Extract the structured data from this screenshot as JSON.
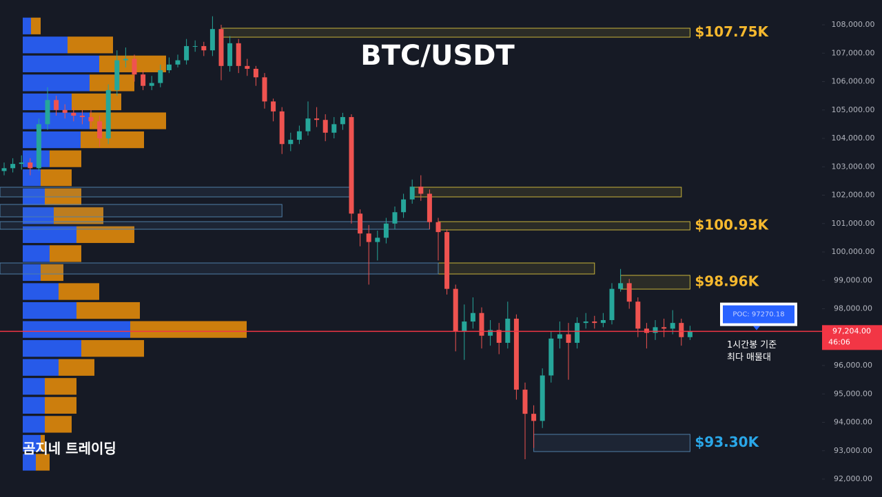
{
  "chart_data": {
    "type": "candlestick",
    "title": "BTC/USDT",
    "watermark": "곰지네 트레이딩",
    "ylim": [
      91370,
      108873
    ],
    "yticks": [
      {
        "value": 92000,
        "label": "92,000.00"
      },
      {
        "value": 93000,
        "label": "93,000.00"
      },
      {
        "value": 94000,
        "label": "94,000.00"
      },
      {
        "value": 95000,
        "label": "95,000.00"
      },
      {
        "value": 96000,
        "label": "96,000.00"
      },
      {
        "value": 97000,
        "label": "97,000.00"
      },
      {
        "value": 98000,
        "label": "98,000.00"
      },
      {
        "value": 99000,
        "label": "99,000.00"
      },
      {
        "value": 100000,
        "label": "100,000.00"
      },
      {
        "value": 101000,
        "label": "101,000.00"
      },
      {
        "value": 102000,
        "label": "102,000.00"
      },
      {
        "value": 103000,
        "label": "103,000.00"
      },
      {
        "value": 104000,
        "label": "104,000.00"
      },
      {
        "value": 105000,
        "label": "105,000.00"
      },
      {
        "value": 106000,
        "label": "106,000.00"
      },
      {
        "value": 107000,
        "label": "107,000.00"
      },
      {
        "value": 108000,
        "label": "108,000.00"
      }
    ],
    "up_color": "#26a69a",
    "down_color": "#ef5350",
    "open": [
      102850,
      102950,
      103100,
      103150,
      102950,
      104500,
      105350,
      105000,
      104900,
      104800,
      104750,
      104600,
      104000,
      105700,
      106750,
      106800,
      106250,
      105850,
      105950,
      106400,
      106600,
      106750,
      107250,
      107250,
      107100,
      107850,
      106550,
      107350,
      106550,
      106450,
      106150,
      105300,
      104950,
      103800,
      103950,
      104250,
      104700,
      104650,
      104200,
      104500,
      104750,
      101350,
      100650,
      100350,
      100500,
      101000,
      101400,
      101850,
      102300,
      102050,
      101050,
      100700,
      98700,
      97200,
      97550,
      97850,
      97050,
      97250,
      96800,
      97650,
      95150,
      94300,
      94050,
      95650,
      96950,
      97100,
      96800,
      97500,
      97550,
      97500,
      97600,
      98700,
      98900,
      98250,
      97300,
      97150,
      97350,
      97300,
      97500,
      97000
    ],
    "high": [
      103150,
      103300,
      103400,
      103300,
      104700,
      105800,
      105500,
      105200,
      105100,
      105000,
      105000,
      104800,
      105900,
      107100,
      107200,
      106950,
      106400,
      106200,
      106600,
      106850,
      106950,
      107500,
      107450,
      107400,
      108300,
      108000,
      107600,
      107500,
      106800,
      106550,
      106300,
      105400,
      105100,
      104200,
      104450,
      105300,
      105100,
      104850,
      104750,
      104900,
      104850,
      101500,
      100950,
      100750,
      101200,
      101600,
      102050,
      102550,
      102700,
      102200,
      101200,
      100800,
      98850,
      98150,
      98400,
      98050,
      97600,
      97500,
      98250,
      97800,
      95400,
      94600,
      95900,
      97200,
      97550,
      97500,
      97700,
      97850,
      97750,
      97850,
      98900,
      99400,
      99050,
      98400,
      97500,
      97600,
      97650,
      97950,
      97650,
      97400
    ],
    "low": [
      102700,
      102800,
      102900,
      102700,
      102850,
      104300,
      104800,
      104700,
      104600,
      104500,
      104400,
      103700,
      103800,
      105500,
      106500,
      106000,
      105700,
      105700,
      105800,
      106300,
      106500,
      106600,
      107050,
      106900,
      106900,
      106050,
      106350,
      106300,
      106200,
      105850,
      105050,
      104600,
      103450,
      103550,
      103800,
      104100,
      104400,
      103900,
      104000,
      104300,
      101000,
      100200,
      98850,
      99700,
      100300,
      100800,
      101200,
      101700,
      101800,
      100800,
      99700,
      98500,
      96500,
      96200,
      97300,
      96600,
      96700,
      96400,
      96600,
      94800,
      92700,
      93100,
      93800,
      95400,
      96600,
      95500,
      96600,
      97300,
      97300,
      97350,
      97450,
      98600,
      98000,
      97000,
      96600,
      96900,
      97000,
      97100,
      96700,
      96900
    ],
    "close": [
      102950,
      103100,
      103150,
      102950,
      104500,
      105350,
      105000,
      104900,
      104800,
      104750,
      104600,
      104000,
      105700,
      106750,
      106800,
      106250,
      105850,
      105950,
      106400,
      106600,
      106750,
      107250,
      107250,
      107100,
      107850,
      106550,
      107350,
      106550,
      106450,
      106150,
      105300,
      104950,
      103800,
      103950,
      104250,
      104700,
      104650,
      104200,
      104500,
      104750,
      101350,
      100650,
      100350,
      100500,
      101000,
      101400,
      101850,
      102300,
      102050,
      101050,
      100700,
      98700,
      97200,
      97550,
      97850,
      97050,
      97250,
      96800,
      97650,
      95150,
      94300,
      94050,
      95650,
      96950,
      97100,
      96800,
      97500,
      97550,
      97500,
      97600,
      98700,
      98900,
      98250,
      97300,
      97150,
      97350,
      97300,
      97500,
      97000,
      97204
    ],
    "profile": {
      "levels": [
        107958,
        107290,
        106622,
        105954,
        105286,
        104618,
        103950,
        103282,
        102614,
        101946,
        101278,
        100610,
        99942,
        99274,
        98606,
        97938,
        97270,
        96602,
        95934,
        95266,
        94598,
        93930,
        93262,
        92594
      ],
      "step": 668,
      "buy_color": "#2962ff",
      "sell_color": "#e08a0b",
      "buy": [
        12,
        65,
        111,
        97,
        71,
        97,
        84,
        39,
        26,
        32,
        45,
        78,
        39,
        26,
        52,
        78,
        156,
        85,
        52,
        32,
        32,
        32,
        26,
        19
      ],
      "sell": [
        14,
        66,
        97,
        65,
        72,
        111,
        92,
        46,
        45,
        53,
        72,
        84,
        46,
        33,
        59,
        92,
        169,
        91,
        52,
        46,
        46,
        39,
        6,
        20
      ]
    },
    "zones": [
      {
        "top": 107879,
        "bottom": 107564,
        "start": 25,
        "end": 79,
        "color": "#c9b43a",
        "label": "$107.75K",
        "label_color": "#f5b82e"
      },
      {
        "top": 102279,
        "bottom": 101939,
        "start": 47,
        "end": 78,
        "color": "#c9b43a"
      },
      {
        "top": 101067,
        "bottom": 100776,
        "start": 50,
        "end": 79,
        "color": "#c9b43a",
        "label": "$100.93K",
        "label_color": "#f5b82e"
      },
      {
        "top": 99612,
        "bottom": 99224,
        "start": 50,
        "end": 68,
        "color": "#c9b43a"
      },
      {
        "top": 99176,
        "bottom": 98691,
        "start": 71,
        "end": 79,
        "color": "#c9b43a",
        "label": "$98.96K",
        "label_color": "#f5b82e"
      },
      {
        "top": 93576,
        "bottom": 92970,
        "start": 61,
        "end": 79,
        "color": "#4f7fa8",
        "label": "$93.30K",
        "label_color": "#2aa7e8"
      },
      {
        "top": 102279,
        "bottom": 101939,
        "start": 0,
        "end": 40,
        "color": "#4f7fa8"
      },
      {
        "top": 101673,
        "bottom": 101236,
        "start": 0,
        "end": 32,
        "color": "#4f7fa8"
      },
      {
        "top": 101067,
        "bottom": 100800,
        "start": 0,
        "end": 49,
        "color": "#4f7fa8"
      },
      {
        "top": 99612,
        "bottom": 99224,
        "start": 0,
        "end": 50,
        "color": "#4f7fa8"
      }
    ],
    "last_price": {
      "value": 97204,
      "label": "97,204.00",
      "countdown": "46:06",
      "color": "#f23645"
    },
    "poc": {
      "value": 97270.18,
      "label": "POC: 97270.18",
      "note": [
        "1시간봉 기준",
        "최다 매물대"
      ]
    }
  }
}
